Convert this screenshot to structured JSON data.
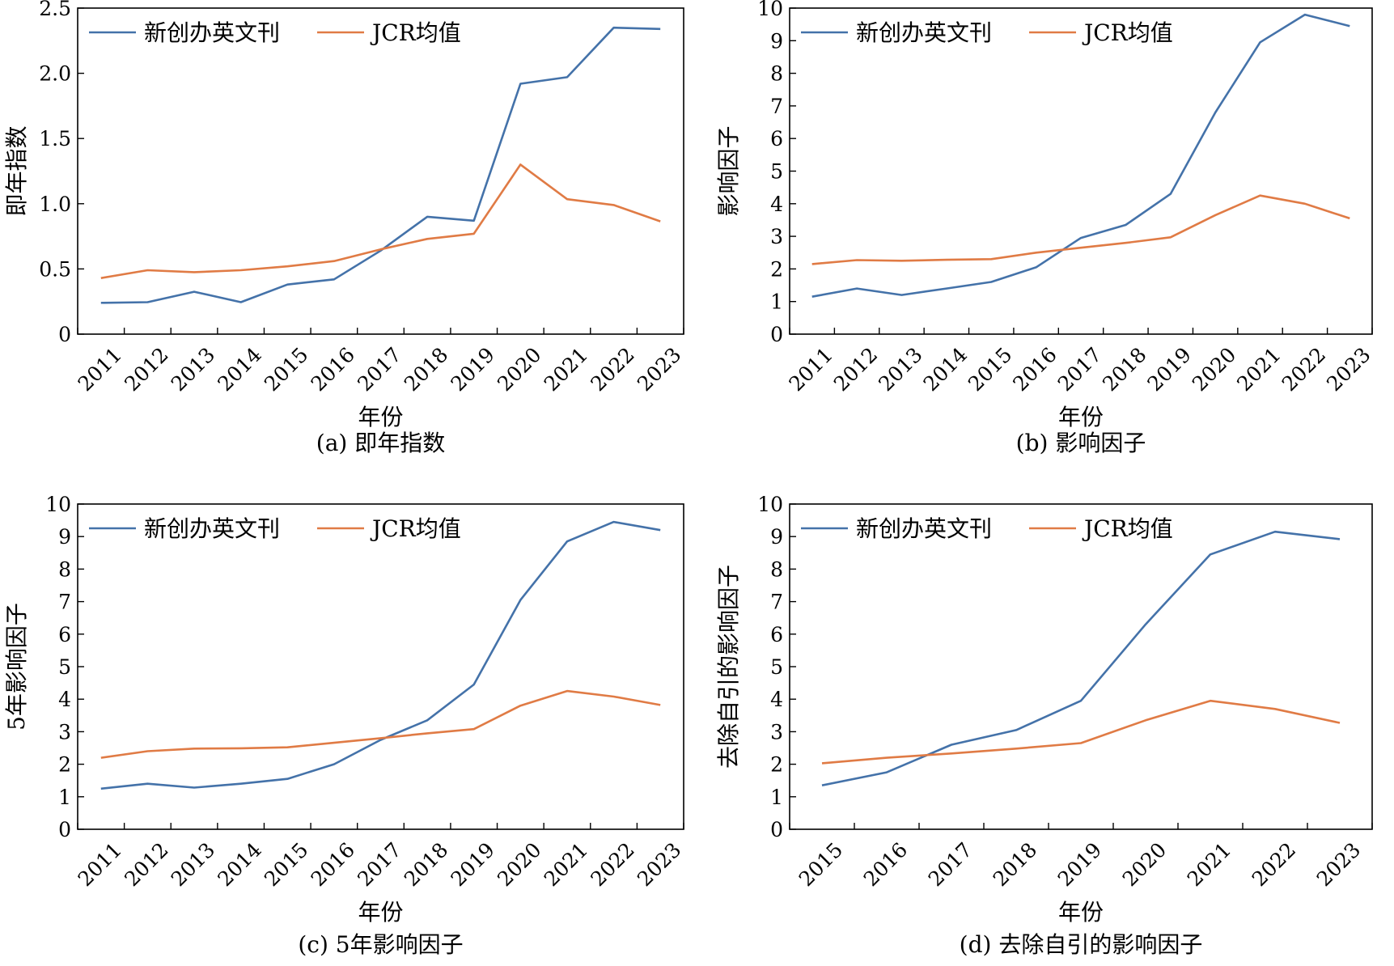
{
  "colors": {
    "blue": "#4472A9",
    "orange": "#E07B45"
  },
  "chart_data": [
    {
      "type": "line",
      "caption": "(a) 即年指数",
      "xlabel": "年份",
      "ylabel": "即年指数",
      "ylim": [
        0,
        2.5
      ],
      "yticks": [
        "0",
        "0.5",
        "1.0",
        "1.5",
        "2.0",
        "2.5"
      ],
      "ytick_values": [
        0,
        0.5,
        1.0,
        1.5,
        2.0,
        2.5
      ],
      "categories": [
        "2011",
        "2012",
        "2013",
        "2014",
        "2015",
        "2016",
        "2017",
        "2018",
        "2019",
        "2020",
        "2021",
        "2022",
        "2023"
      ],
      "legend_position": "top-left",
      "series": [
        {
          "name": "新创办英文刊",
          "color": "blue",
          "values": [
            0.24,
            0.245,
            0.325,
            0.245,
            0.38,
            0.42,
            0.64,
            0.9,
            0.87,
            1.92,
            1.97,
            2.35,
            2.34
          ]
        },
        {
          "name": "JCR均值",
          "color": "orange",
          "values": [
            0.43,
            0.49,
            0.475,
            0.49,
            0.52,
            0.56,
            0.65,
            0.73,
            0.77,
            1.3,
            1.035,
            0.99,
            0.865
          ]
        }
      ]
    },
    {
      "type": "line",
      "caption": "(b) 影响因子",
      "xlabel": "年份",
      "ylabel": "影响因子",
      "ylim": [
        0,
        10
      ],
      "yticks": [
        "0",
        "1",
        "2",
        "3",
        "4",
        "5",
        "6",
        "7",
        "8",
        "9",
        "10"
      ],
      "ytick_values": [
        0,
        1,
        2,
        3,
        4,
        5,
        6,
        7,
        8,
        9,
        10
      ],
      "categories": [
        "2011",
        "2012",
        "2013",
        "2014",
        "2015",
        "2016",
        "2017",
        "2018",
        "2019",
        "2020",
        "2021",
        "2022",
        "2023"
      ],
      "legend_position": "top-left",
      "series": [
        {
          "name": "新创办英文刊",
          "color": "blue",
          "values": [
            1.15,
            1.4,
            1.2,
            1.4,
            1.6,
            2.05,
            2.95,
            3.35,
            4.3,
            6.8,
            8.95,
            9.8,
            9.45
          ]
        },
        {
          "name": "JCR均值",
          "color": "orange",
          "values": [
            2.15,
            2.27,
            2.25,
            2.28,
            2.3,
            2.5,
            2.65,
            2.8,
            2.97,
            3.65,
            4.25,
            4.0,
            3.55
          ]
        }
      ]
    },
    {
      "type": "line",
      "caption": "(c) 5年影响因子",
      "xlabel": "年份",
      "ylabel": "5年影响因子",
      "ylim": [
        0,
        10
      ],
      "yticks": [
        "0",
        "1",
        "2",
        "3",
        "4",
        "5",
        "6",
        "7",
        "8",
        "9",
        "10"
      ],
      "ytick_values": [
        0,
        1,
        2,
        3,
        4,
        5,
        6,
        7,
        8,
        9,
        10
      ],
      "categories": [
        "2011",
        "2012",
        "2013",
        "2014",
        "2015",
        "2016",
        "2017",
        "2018",
        "2019",
        "2020",
        "2021",
        "2022",
        "2023"
      ],
      "legend_position": "top-left",
      "series": [
        {
          "name": "新创办英文刊",
          "color": "blue",
          "values": [
            1.25,
            1.4,
            1.28,
            1.4,
            1.55,
            2.0,
            2.75,
            3.35,
            4.45,
            7.05,
            8.85,
            9.45,
            9.2
          ]
        },
        {
          "name": "JCR均值",
          "color": "orange",
          "values": [
            2.2,
            2.4,
            2.48,
            2.49,
            2.52,
            2.66,
            2.8,
            2.95,
            3.08,
            3.8,
            4.25,
            4.08,
            3.82
          ]
        }
      ]
    },
    {
      "type": "line",
      "caption": "(d) 去除自引的影响因子",
      "xlabel": "年份",
      "ylabel": "去除自引的影响因子",
      "ylim": [
        0,
        10
      ],
      "yticks": [
        "0",
        "1",
        "2",
        "3",
        "4",
        "5",
        "6",
        "7",
        "8",
        "9",
        "10"
      ],
      "ytick_values": [
        0,
        1,
        2,
        3,
        4,
        5,
        6,
        7,
        8,
        9,
        10
      ],
      "categories": [
        "2015",
        "2016",
        "2017",
        "2018",
        "2019",
        "2020",
        "2021",
        "2022",
        "2023"
      ],
      "legend_position": "top-left",
      "series": [
        {
          "name": "新创办英文刊",
          "color": "blue",
          "values": [
            1.35,
            1.75,
            2.6,
            3.05,
            3.95,
            6.3,
            8.45,
            9.15,
            8.92
          ]
        },
        {
          "name": "JCR均值",
          "color": "orange",
          "values": [
            2.03,
            2.2,
            2.33,
            2.48,
            2.65,
            3.35,
            3.95,
            3.7,
            3.27
          ]
        }
      ]
    }
  ]
}
